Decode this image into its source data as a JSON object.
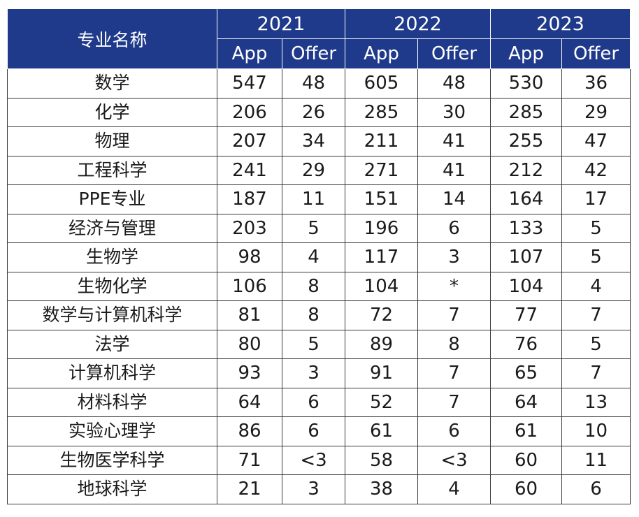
{
  "header": {
    "major_label": "专业名称",
    "years": [
      "2021",
      "2022",
      "2023"
    ],
    "app_label": "App",
    "offer_label": "Offer"
  },
  "rows": [
    {
      "major": "数学",
      "v": [
        "547",
        "48",
        "605",
        "48",
        "530",
        "36"
      ]
    },
    {
      "major": "化学",
      "v": [
        "206",
        "26",
        "285",
        "30",
        "285",
        "29"
      ]
    },
    {
      "major": "物理",
      "v": [
        "207",
        "34",
        "211",
        "41",
        "255",
        "47"
      ]
    },
    {
      "major": "工程科学",
      "v": [
        "241",
        "29",
        "271",
        "41",
        "212",
        "42"
      ]
    },
    {
      "major": "PPE专业",
      "v": [
        "187",
        "11",
        "151",
        "14",
        "164",
        "17"
      ]
    },
    {
      "major": "经济与管理",
      "v": [
        "203",
        "5",
        "196",
        "6",
        "133",
        "5"
      ]
    },
    {
      "major": "生物学",
      "v": [
        "98",
        "4",
        "117",
        "3",
        "107",
        "5"
      ]
    },
    {
      "major": "生物化学",
      "v": [
        "106",
        "8",
        "104",
        "*",
        "104",
        "4"
      ]
    },
    {
      "major": "数学与计算机科学",
      "v": [
        "81",
        "8",
        "72",
        "7",
        "77",
        "7"
      ]
    },
    {
      "major": "法学",
      "v": [
        "80",
        "5",
        "89",
        "8",
        "76",
        "5"
      ]
    },
    {
      "major": "计算机科学",
      "v": [
        "93",
        "3",
        "91",
        "7",
        "65",
        "7"
      ]
    },
    {
      "major": "材料科学",
      "v": [
        "64",
        "6",
        "52",
        "7",
        "64",
        "13"
      ]
    },
    {
      "major": "实验心理学",
      "v": [
        "86",
        "6",
        "61",
        "6",
        "61",
        "10"
      ]
    },
    {
      "major": "生物医学科学",
      "v": [
        "71",
        "<3",
        "58",
        "<3",
        "60",
        "11"
      ]
    },
    {
      "major": "地球科学",
      "v": [
        "21",
        "3",
        "38",
        "4",
        "60",
        "6"
      ]
    }
  ]
}
